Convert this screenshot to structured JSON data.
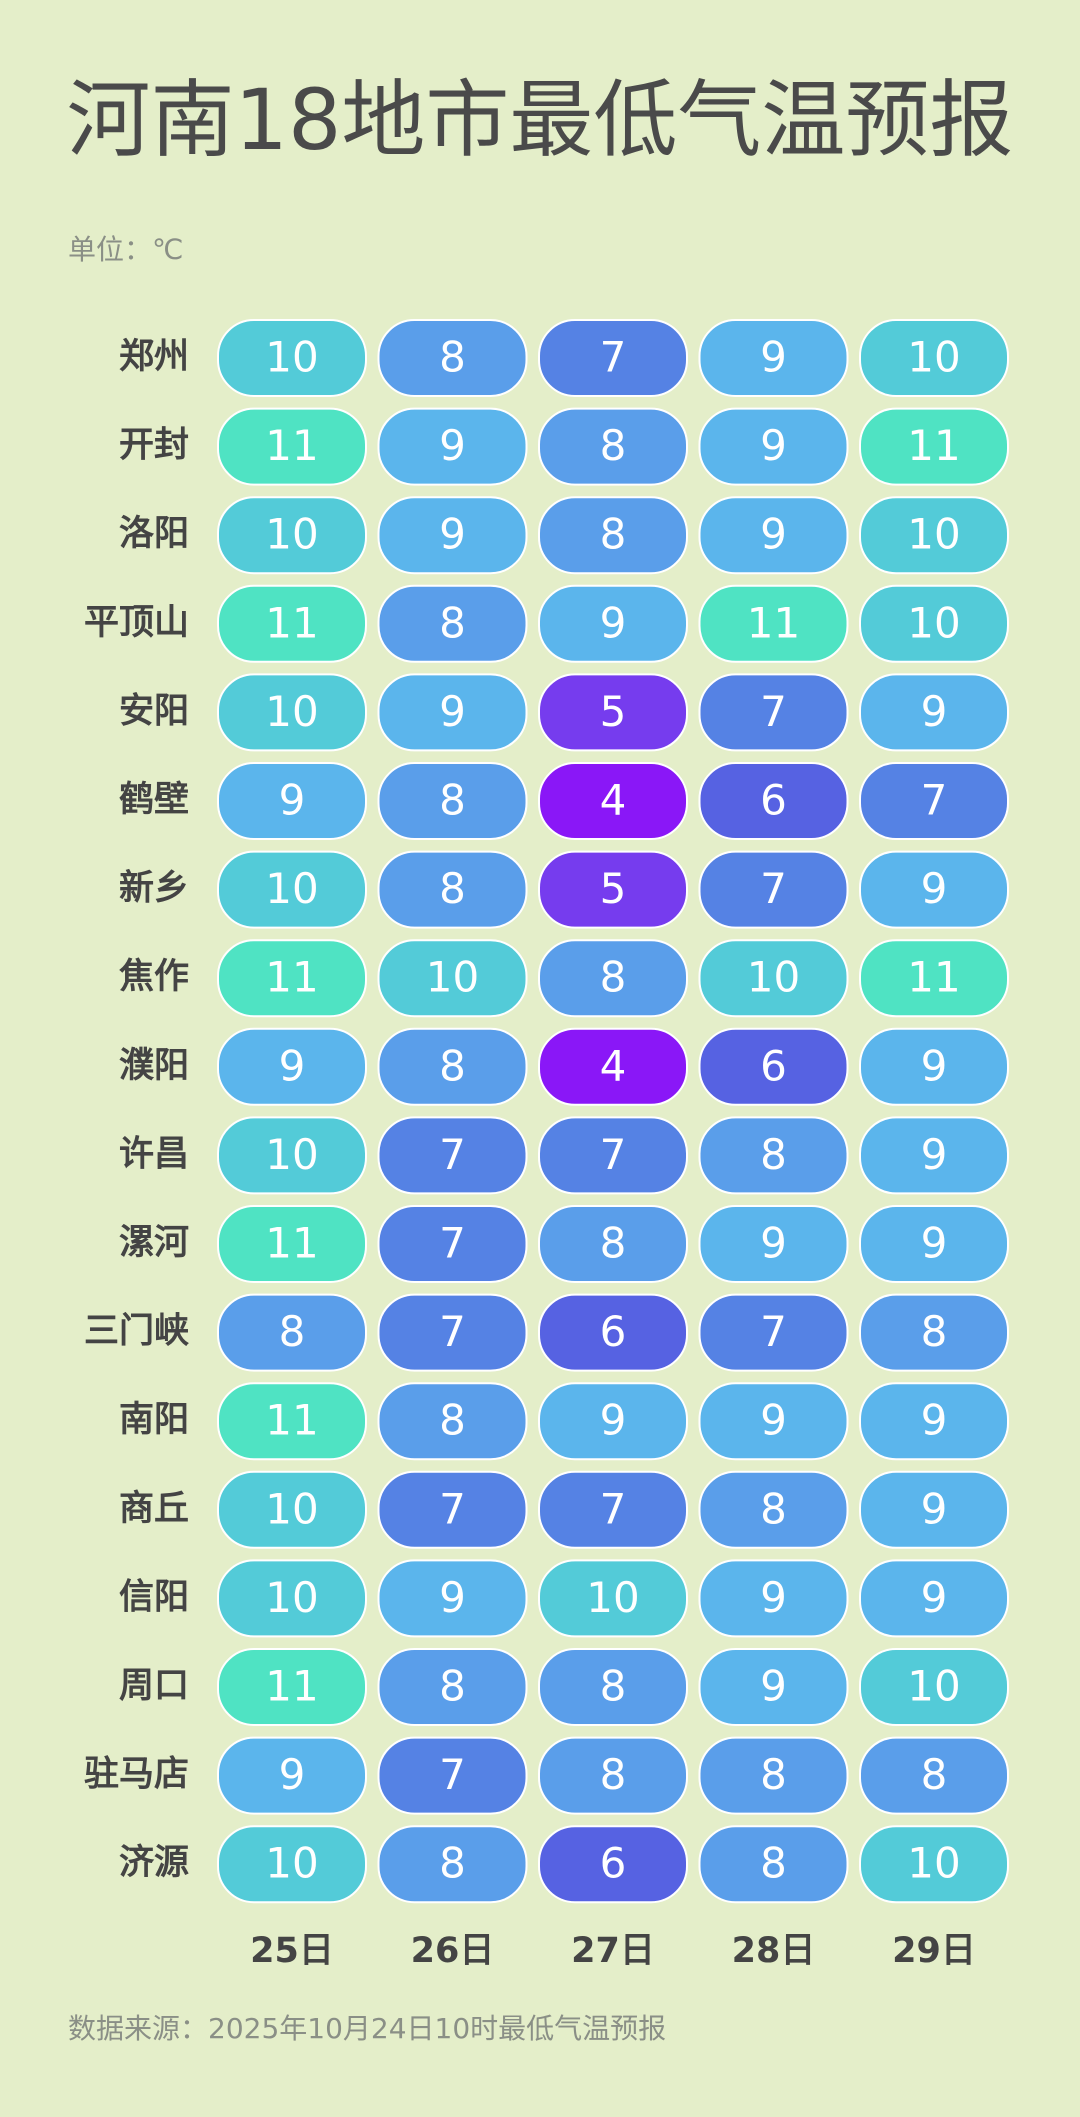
{
  "chart_data": {
    "type": "heatmap",
    "title": "河南18地市最低气温预报",
    "unit": "单位：℃",
    "source": "数据来源：2025年10月24日10时最低气温预报",
    "categories": [
      "25日",
      "26日",
      "27日",
      "28日",
      "29日"
    ],
    "rows": [
      "郑州",
      "开封",
      "洛阳",
      "平顶山",
      "安阳",
      "鹤壁",
      "新乡",
      "焦作",
      "濮阳",
      "许昌",
      "漯河",
      "三门峡",
      "南阳",
      "商丘",
      "信阳",
      "周口",
      "驻马店",
      "济源"
    ],
    "values": [
      [
        10,
        8,
        7,
        9,
        10
      ],
      [
        11,
        9,
        8,
        9,
        11
      ],
      [
        10,
        9,
        8,
        9,
        10
      ],
      [
        11,
        8,
        9,
        11,
        10
      ],
      [
        10,
        9,
        5,
        7,
        9
      ],
      [
        9,
        8,
        4,
        6,
        7
      ],
      [
        10,
        8,
        5,
        7,
        9
      ],
      [
        11,
        10,
        8,
        10,
        11
      ],
      [
        9,
        8,
        4,
        6,
        9
      ],
      [
        10,
        7,
        7,
        8,
        9
      ],
      [
        11,
        7,
        8,
        9,
        9
      ],
      [
        8,
        7,
        6,
        7,
        8
      ],
      [
        11,
        8,
        9,
        9,
        9
      ],
      [
        10,
        7,
        7,
        8,
        9
      ],
      [
        10,
        9,
        10,
        9,
        9
      ],
      [
        11,
        8,
        8,
        9,
        10
      ],
      [
        9,
        7,
        8,
        8,
        8
      ],
      [
        10,
        8,
        6,
        8,
        10
      ]
    ],
    "color_scale": [
      {
        "value": 4,
        "color": "#8a17f7"
      },
      {
        "value": 5,
        "color": "#763cee"
      },
      {
        "value": 6,
        "color": "#5662e2"
      },
      {
        "value": 7,
        "color": "#5582e4"
      },
      {
        "value": 8,
        "color": "#5a9eea"
      },
      {
        "value": 9,
        "color": "#5bb5ec"
      },
      {
        "value": 10,
        "color": "#53cbd8"
      },
      {
        "value": 11,
        "color": "#4fe3c3"
      }
    ]
  }
}
